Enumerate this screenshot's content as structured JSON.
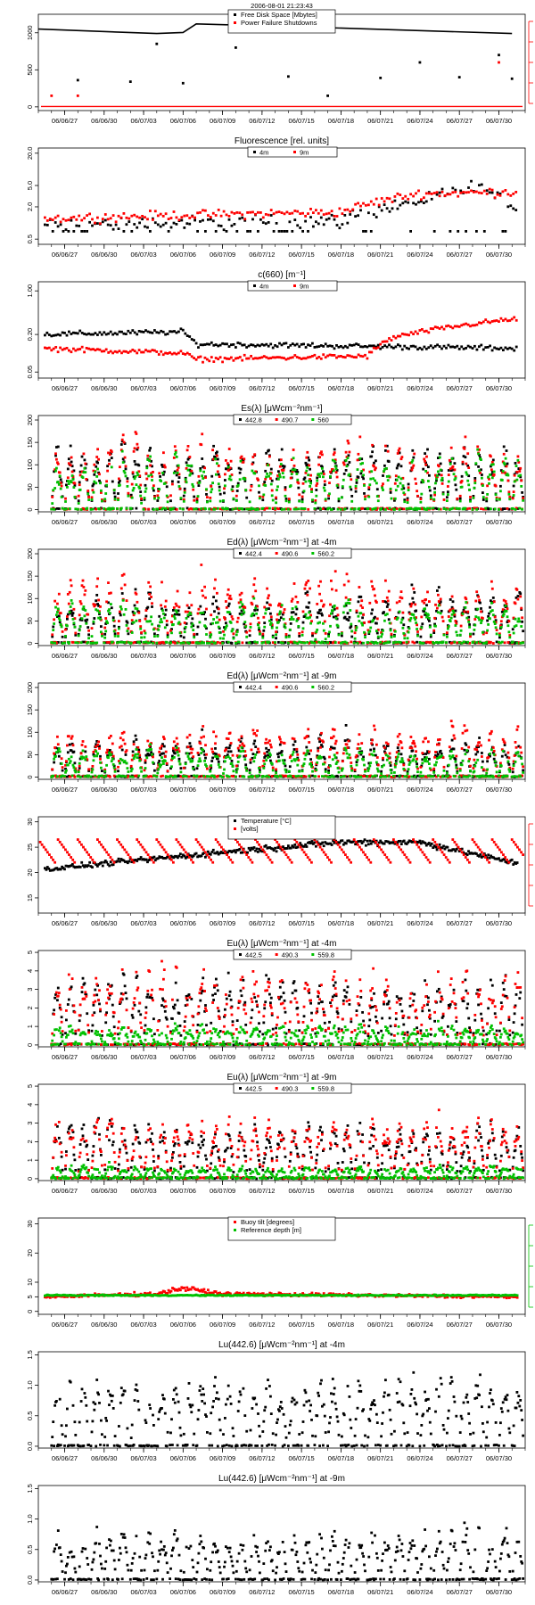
{
  "timestamp": "2006-08-01 21:23:43",
  "colors": {
    "black": "#000000",
    "red": "#ff0000",
    "green": "#00c000"
  },
  "x_ticks": [
    "06/06/27",
    "06/06/30",
    "06/07/03",
    "06/07/06",
    "06/07/09",
    "06/07/12",
    "06/07/15",
    "06/07/18",
    "06/07/21",
    "06/07/24",
    "06/07/27",
    "06/07/30"
  ],
  "chart_data": [
    {
      "type": "scatter",
      "title": "",
      "x_range": [
        "06/06/25",
        "06/08/01"
      ],
      "yticks": [
        "0",
        "500",
        "1000"
      ],
      "ylim": [
        -50,
        1250
      ],
      "legend": {
        "placement": "top-center",
        "entries": [
          "Free Disk Space [Mbytes]",
          "Power Failure Shutdowns"
        ]
      },
      "right_axis": true,
      "series": [
        {
          "name": "Free Disk Space [Mbytes]",
          "color": "black",
          "kind": "line",
          "points": [
            [
              "06/06/25",
              1050
            ],
            [
              "06/07/04",
              990
            ],
            [
              "06/07/06",
              1005
            ],
            [
              "06/07/07",
              1120
            ],
            [
              "06/07/15",
              1080
            ],
            [
              "06/07/31",
              990
            ]
          ]
        },
        {
          "color": "black",
          "kind": "markers",
          "points": [
            [
              "06/06/25",
              420
            ],
            [
              "06/06/28",
              360
            ],
            [
              "06/07/02",
              340
            ],
            [
              "06/07/04",
              850
            ],
            [
              "06/07/06",
              320
            ],
            [
              "06/07/10",
              800
            ],
            [
              "06/07/14",
              410
            ],
            [
              "06/07/17",
              150
            ],
            [
              "06/07/21",
              390
            ],
            [
              "06/07/24",
              600
            ],
            [
              "06/07/27",
              400
            ],
            [
              "06/07/30",
              700
            ],
            [
              "06/07/31",
              380
            ]
          ]
        },
        {
          "name": "Power Failure Shutdowns",
          "color": "red",
          "kind": "markers",
          "points": [
            [
              "06/06/26",
              150
            ],
            [
              "06/06/28",
              150
            ],
            [
              "06/07/30",
              600
            ]
          ]
        },
        {
          "color": "red",
          "kind": "hline",
          "value": 5
        }
      ]
    },
    {
      "type": "scatter",
      "title": "Fluorescence [rel. units]",
      "x_range": [
        "06/06/25",
        "06/08/01"
      ],
      "log": true,
      "yticks": [
        "0.5",
        "2.0",
        "5.0",
        "20.0"
      ],
      "ytick_values": [
        0.5,
        2,
        5,
        20
      ],
      "ylim": [
        0.4,
        25
      ],
      "legend": {
        "placement": "top-center",
        "entries": [
          "4m",
          "9m"
        ]
      },
      "series": [
        {
          "name": "4m",
          "color": "black",
          "kind": "noisy",
          "trend": [
            [
              "06/06/25",
              0.9
            ],
            [
              "06/07/18",
              1.1
            ],
            [
              "06/07/24",
              2.5
            ],
            [
              "06/07/28",
              4.5
            ],
            [
              "06/07/31",
              2.2
            ]
          ],
          "points_per_day": 5,
          "spread": 0.4,
          "low_band": 0.7
        },
        {
          "name": "9m",
          "color": "red",
          "kind": "noisy",
          "trend": [
            [
              "06/06/25",
              1.2
            ],
            [
              "06/07/18",
              1.6
            ],
            [
              "06/07/24",
              3.5
            ],
            [
              "06/07/31",
              3.8
            ]
          ],
          "points_per_day": 5,
          "spread": 0.25
        }
      ]
    },
    {
      "type": "scatter",
      "title": "c(660) [m⁻¹]",
      "x_range": [
        "06/06/25",
        "06/08/01"
      ],
      "log": true,
      "yticks": [
        "0.05",
        "0.20",
        "1.00"
      ],
      "ytick_values": [
        0.05,
        0.2,
        1.0
      ],
      "ylim": [
        0.04,
        1.4
      ],
      "legend": {
        "placement": "top-center",
        "entries": [
          "4m",
          "9m"
        ]
      },
      "series": [
        {
          "name": "4m",
          "color": "black",
          "kind": "noisy",
          "trend": [
            [
              "06/06/25",
              0.2
            ],
            [
              "06/07/06",
              0.22
            ],
            [
              "06/07/07",
              0.14
            ],
            [
              "06/07/31",
              0.12
            ]
          ],
          "points_per_day": 6,
          "spread": 0.12
        },
        {
          "name": "9m",
          "color": "red",
          "kind": "noisy",
          "trend": [
            [
              "06/06/25",
              0.12
            ],
            [
              "06/07/06",
              0.1
            ],
            [
              "06/07/07",
              0.08
            ],
            [
              "06/07/20",
              0.09
            ],
            [
              "06/07/22",
              0.18
            ],
            [
              "06/07/31",
              0.35
            ]
          ],
          "points_per_day": 6,
          "spread": 0.12
        }
      ]
    },
    {
      "type": "scatter",
      "title": "Es(λ) [μWcm⁻²nm⁻¹]",
      "x_range": [
        "06/06/25",
        "06/08/01"
      ],
      "yticks": [
        "0",
        "50",
        "100",
        "150",
        "200"
      ],
      "ylim": [
        -5,
        210
      ],
      "legend": {
        "placement": "top-center",
        "entries": [
          "442.8",
          "490.7",
          "560"
        ]
      },
      "series": [
        {
          "name": "442.8",
          "color": "black",
          "kind": "diurnal",
          "peak": 140,
          "peak_var": 40,
          "ppd": 14
        },
        {
          "name": "490.7",
          "color": "red",
          "kind": "diurnal",
          "peak": 150,
          "peak_var": 40,
          "ppd": 14
        },
        {
          "name": "560",
          "color": "green",
          "kind": "diurnal",
          "peak": 120,
          "peak_var": 40,
          "ppd": 14
        }
      ]
    },
    {
      "type": "scatter",
      "title": "Ed(λ) [μWcm⁻²nm⁻¹] at -4m",
      "x_range": [
        "06/06/25",
        "06/08/01"
      ],
      "yticks": [
        "0",
        "50",
        "100",
        "150",
        "200"
      ],
      "ylim": [
        -5,
        210
      ],
      "legend": {
        "placement": "top-center",
        "entries": [
          "442.4",
          "490.6",
          "560.2"
        ]
      },
      "series": [
        {
          "name": "442.4",
          "color": "black",
          "kind": "diurnal",
          "peak": 110,
          "peak_var": 50,
          "ppd": 14
        },
        {
          "name": "490.6",
          "color": "red",
          "kind": "diurnal",
          "peak": 140,
          "peak_var": 50,
          "ppd": 14
        },
        {
          "name": "560.2",
          "color": "green",
          "kind": "diurnal",
          "peak": 90,
          "peak_var": 40,
          "ppd": 14
        }
      ]
    },
    {
      "type": "scatter",
      "title": "Ed(λ) [μWcm⁻²nm⁻¹] at -9m",
      "x_range": [
        "06/06/25",
        "06/08/01"
      ],
      "yticks": [
        "0",
        "50",
        "100",
        "150",
        "200"
      ],
      "ylim": [
        -5,
        210
      ],
      "legend": {
        "placement": "top-center",
        "entries": [
          "442.4",
          "490.6",
          "560.2"
        ]
      },
      "series": [
        {
          "name": "442.4",
          "color": "black",
          "kind": "diurnal",
          "peak": 90,
          "peak_var": 40,
          "ppd": 14
        },
        {
          "name": "490.6",
          "color": "red",
          "kind": "diurnal",
          "peak": 110,
          "peak_var": 40,
          "ppd": 14
        },
        {
          "name": "560.2",
          "color": "green",
          "kind": "diurnal",
          "peak": 60,
          "peak_var": 25,
          "ppd": 14
        }
      ]
    },
    {
      "type": "scatter",
      "title": "",
      "x_range": [
        "06/06/25",
        "06/08/01"
      ],
      "yticks": [
        "15",
        "20",
        "25",
        "30"
      ],
      "ylim": [
        12,
        31
      ],
      "legend": {
        "placement": "top-center",
        "entries": [
          "Temperature [°C]",
          "[volts]"
        ]
      },
      "right_axis": true,
      "series": [
        {
          "name": "Temperature [°C]",
          "color": "black",
          "kind": "noisy",
          "trend": [
            [
              "06/06/25",
              20.5
            ],
            [
              "06/07/09",
              24
            ],
            [
              "06/07/18",
              26
            ],
            [
              "06/07/24",
              26
            ],
            [
              "06/07/31",
              22
            ]
          ],
          "points_per_day": 10,
          "spread": 0.035
        },
        {
          "name": "[volts]",
          "color": "red",
          "kind": "sawtooth",
          "top": 26.5,
          "bottom": 21.5,
          "ppd": 10
        }
      ]
    },
    {
      "type": "scatter",
      "title": "Eu(λ) [μWcm⁻²nm⁻¹] at -4m",
      "x_range": [
        "06/06/25",
        "06/08/01"
      ],
      "yticks": [
        "0",
        "1",
        "2",
        "3",
        "4",
        "5"
      ],
      "ylim": [
        -0.1,
        5.1
      ],
      "legend": {
        "placement": "top-center",
        "entries": [
          "442.5",
          "490.3",
          "559.8"
        ]
      },
      "series": [
        {
          "name": "442.5",
          "color": "black",
          "kind": "diurnal",
          "peak": 3.8,
          "peak_var": 1.0,
          "ppd": 14
        },
        {
          "name": "490.3",
          "color": "red",
          "kind": "diurnal",
          "peak": 4.0,
          "peak_var": 1.0,
          "ppd": 14
        },
        {
          "name": "559.8",
          "color": "green",
          "kind": "diurnal",
          "peak": 1.0,
          "peak_var": 0.4,
          "ppd": 14
        }
      ]
    },
    {
      "type": "scatter",
      "title": "Eu(λ) [μWcm⁻²nm⁻¹] at -9m",
      "x_range": [
        "06/06/25",
        "06/08/01"
      ],
      "yticks": [
        "0",
        "1",
        "2",
        "3",
        "4",
        "5"
      ],
      "ylim": [
        -0.1,
        5.1
      ],
      "legend": {
        "placement": "top-center",
        "entries": [
          "442.5",
          "490.3",
          "559.8"
        ]
      },
      "series": [
        {
          "name": "442.5",
          "color": "black",
          "kind": "diurnal",
          "peak": 3.0,
          "peak_var": 0.8,
          "ppd": 14
        },
        {
          "name": "490.3",
          "color": "red",
          "kind": "diurnal",
          "peak": 3.4,
          "peak_var": 0.8,
          "ppd": 14
        },
        {
          "name": "559.8",
          "color": "green",
          "kind": "diurnal",
          "peak": 0.7,
          "peak_var": 0.3,
          "ppd": 14
        }
      ]
    },
    {
      "type": "scatter",
      "title": "",
      "x_range": [
        "06/06/25",
        "06/08/01"
      ],
      "yticks": [
        "0",
        "5",
        "10",
        "20",
        "30"
      ],
      "ytick_values": [
        0,
        5,
        10,
        20,
        30
      ],
      "ylim": [
        -1,
        32
      ],
      "legend": {
        "placement": "top-center",
        "entries": [
          "Buoy tilt [degrees]",
          "Reference depth [m]"
        ]
      },
      "right_axis": true,
      "right_axis_color": "green",
      "series": [
        {
          "name": "Buoy tilt [degrees]",
          "color": "red",
          "kind": "noisy",
          "trend": [
            [
              "06/06/25",
              5
            ],
            [
              "06/07/04",
              6
            ],
            [
              "06/07/06",
              8
            ],
            [
              "06/07/09",
              6
            ],
            [
              "06/07/31",
              5
            ]
          ],
          "points_per_day": 10,
          "spread": 0.15
        },
        {
          "name": "Reference depth [m]",
          "color": "green",
          "kind": "noisy",
          "trend": [
            [
              "06/06/25",
              5.5
            ],
            [
              "06/07/31",
              5.5
            ]
          ],
          "points_per_day": 10,
          "spread": 0.05
        }
      ]
    },
    {
      "type": "scatter",
      "title": "Lu(442.6) [μWcm⁻²nm⁻¹] at -4m",
      "x_range": [
        "06/06/25",
        "06/08/01"
      ],
      "yticks": [
        "0.0",
        "0.5",
        "1.0",
        "1.5"
      ],
      "ytick_values": [
        0,
        0.5,
        1.0,
        1.5
      ],
      "ylim": [
        -0.03,
        1.55
      ],
      "series": [
        {
          "color": "black",
          "kind": "diurnal",
          "peak": 1.15,
          "peak_var": 0.3,
          "ppd": 14
        }
      ]
    },
    {
      "type": "scatter",
      "title": "Lu(442.6) [μWcm⁻²nm⁻¹] at -9m",
      "x_range": [
        "06/06/25",
        "06/08/01"
      ],
      "yticks": [
        "0.0",
        "0.5",
        "1.0",
        "1.5"
      ],
      "ytick_values": [
        0,
        0.5,
        1.0,
        1.5
      ],
      "ylim": [
        -0.03,
        1.55
      ],
      "series": [
        {
          "color": "black",
          "kind": "diurnal",
          "peak": 0.8,
          "peak_var": 0.25,
          "ppd": 14
        }
      ]
    }
  ]
}
